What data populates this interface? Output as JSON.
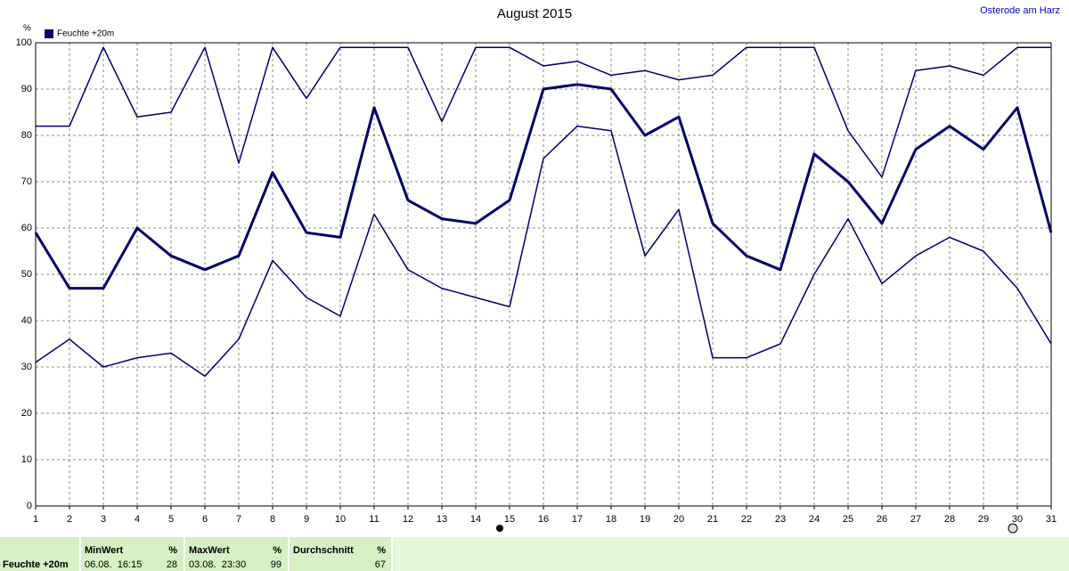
{
  "header": {
    "title": "August 2015",
    "location": "Osterode am Harz"
  },
  "chart_data": {
    "type": "line",
    "y_unit": "%",
    "x": [
      1,
      2,
      3,
      4,
      5,
      6,
      7,
      8,
      9,
      10,
      11,
      12,
      13,
      14,
      15,
      16,
      17,
      18,
      19,
      20,
      21,
      22,
      23,
      24,
      25,
      26,
      27,
      28,
      29,
      30,
      31
    ],
    "xlim": [
      1,
      31
    ],
    "xticks": [
      1,
      2,
      3,
      4,
      5,
      6,
      7,
      8,
      9,
      10,
      11,
      12,
      13,
      14,
      15,
      16,
      17,
      18,
      19,
      20,
      21,
      22,
      23,
      24,
      25,
      26,
      27,
      28,
      29,
      30,
      31
    ],
    "ylim": [
      0,
      100
    ],
    "yticks": [
      0,
      10,
      20,
      30,
      40,
      50,
      60,
      70,
      80,
      90,
      100
    ],
    "grid": true,
    "legend": "top-left",
    "series": [
      {
        "color": "#000066",
        "line_width": 1.5,
        "values": [
          82,
          82,
          99,
          84,
          85,
          99,
          74,
          99,
          88,
          99,
          99,
          99,
          83,
          99,
          99,
          95,
          96,
          93,
          94,
          92,
          93,
          99,
          99,
          99,
          81,
          71,
          94,
          95,
          93,
          99,
          99
        ]
      },
      {
        "name": "Feuchte +20m",
        "color": "#000066",
        "line_width": 3,
        "values": [
          59,
          47,
          47,
          60,
          54,
          51,
          54,
          72,
          59,
          58,
          86,
          66,
          62,
          61,
          66,
          90,
          91,
          90,
          80,
          84,
          61,
          54,
          51,
          76,
          70,
          61,
          77,
          82,
          77,
          86,
          59
        ]
      },
      {
        "color": "#000066",
        "line_width": 1.5,
        "values": [
          31,
          36,
          30,
          32,
          33,
          28,
          36,
          53,
          45,
          41,
          63,
          51,
          47,
          45,
          43,
          75,
          82,
          81,
          54,
          64,
          32,
          32,
          35,
          50,
          62,
          48,
          54,
          58,
          55,
          47,
          35
        ]
      }
    ]
  },
  "summary": {
    "row_label": "Feuchte +20m",
    "columns": [
      {
        "title": "MinWert",
        "unit": "%",
        "when": "06.08.  16:15",
        "value": "28"
      },
      {
        "title": "MaxWert",
        "unit": "%",
        "when": "03.08.  23:30",
        "value": "99"
      },
      {
        "title": "Durchschnitt",
        "unit": "%",
        "value": "67"
      }
    ]
  }
}
